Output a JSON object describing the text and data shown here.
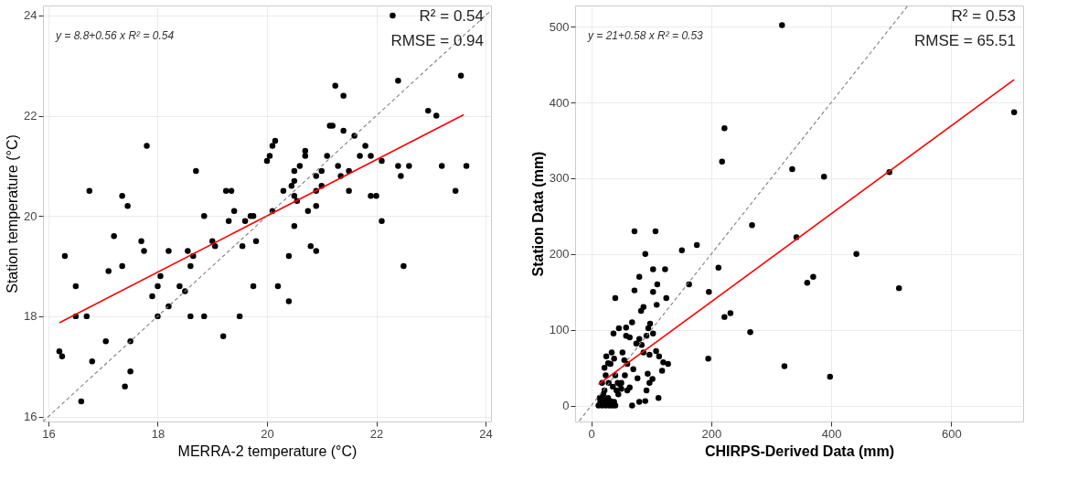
{
  "chart_data": [
    {
      "type": "scatter",
      "xlabel": "MERRA-2 temperature (°C)",
      "ylabel": "Station temperature (°C)",
      "xlim": [
        15.9,
        24.1
      ],
      "ylim": [
        15.9,
        24.2
      ],
      "xticks": [
        16,
        18,
        20,
        22,
        24
      ],
      "yticks": [
        16,
        18,
        20,
        22,
        24
      ],
      "grid": true,
      "annotations": [
        "y = 8.8+0.56 x   R² = 0.54",
        "R² = 0.54",
        "RMSE = 0.94"
      ],
      "series": [
        {
          "marker": "circle",
          "color": "#000000",
          "x": [
            16.2,
            16.25,
            16.3,
            16.5,
            16.5,
            16.6,
            16.7,
            16.75,
            16.8,
            17.05,
            17.1,
            17.2,
            17.35,
            17.35,
            17.4,
            17.45,
            17.5,
            17.5,
            17.7,
            17.75,
            17.8,
            17.9,
            18.0,
            18.0,
            18.05,
            18.2,
            18.2,
            18.4,
            18.5,
            18.55,
            18.6,
            18.6,
            18.65,
            18.7,
            18.85,
            18.85,
            19.0,
            19.05,
            19.2,
            19.25,
            19.35,
            19.3,
            19.4,
            19.5,
            19.55,
            19.6,
            19.7,
            19.75,
            19.75,
            19.8,
            20.0,
            20.05,
            20.1,
            20.15,
            20.1,
            20.2,
            20.4,
            20.4,
            20.45,
            20.5,
            20.5,
            20.5,
            20.5,
            20.6,
            20.7,
            20.7,
            20.75,
            20.8,
            20.9,
            20.9,
            20.9,
            21.0,
            21.0,
            21.1,
            21.15,
            21.2,
            21.25,
            21.3,
            21.4,
            21.4,
            21.5,
            21.6,
            21.7,
            21.8,
            21.9,
            21.9,
            22.0,
            22.1,
            22.1,
            22.3,
            22.4,
            22.4,
            22.45,
            22.5,
            22.6,
            22.95,
            23.1,
            23.2,
            23.45,
            23.55,
            23.65,
            20.9,
            21.35,
            21.5,
            20.3,
            20.55
          ],
          "values": [
            17.3,
            17.2,
            19.2,
            18.6,
            18.0,
            16.3,
            18.0,
            20.5,
            17.1,
            17.5,
            18.9,
            19.6,
            19.0,
            20.4,
            16.6,
            20.2,
            16.9,
            17.5,
            19.5,
            19.3,
            21.4,
            18.4,
            18.6,
            18.0,
            18.8,
            19.3,
            18.2,
            18.6,
            18.5,
            19.3,
            18.0,
            19.0,
            19.2,
            20.9,
            18.0,
            20.0,
            19.5,
            19.4,
            17.6,
            20.5,
            20.5,
            19.9,
            20.1,
            18.0,
            19.4,
            19.9,
            20.0,
            18.6,
            20.0,
            19.5,
            21.1,
            21.2,
            21.4,
            21.5,
            20.1,
            18.6,
            18.3,
            19.2,
            20.6,
            20.4,
            20.7,
            20.9,
            19.8,
            21.0,
            21.2,
            21.3,
            20.1,
            19.4,
            19.3,
            20.5,
            20.2,
            20.6,
            20.9,
            21.2,
            21.8,
            21.8,
            22.6,
            21.0,
            22.4,
            21.7,
            20.5,
            21.6,
            21.2,
            21.4,
            21.2,
            20.4,
            20.4,
            19.9,
            21.1,
            24.0,
            21.0,
            22.7,
            20.8,
            19.0,
            21.0,
            22.1,
            22.0,
            21.0,
            20.5,
            22.8,
            21.0,
            20.8,
            20.8,
            20.9,
            20.5,
            20.3
          ]
        },
        {
          "type": "line",
          "color": "#ff0000",
          "line_style": "solid",
          "x": [
            16.2,
            23.6
          ],
          "values": [
            17.87,
            22.02
          ]
        },
        {
          "type": "line",
          "color": "#808080",
          "line_style": "dashed",
          "x": [
            15.9,
            24.1
          ],
          "values": [
            15.9,
            24.1
          ]
        }
      ]
    },
    {
      "type": "scatter",
      "xlabel": "CHIRPS-Derived Data (mm)",
      "ylabel": "Station Data (mm)",
      "xlim": [
        -27,
        720
      ],
      "ylim": [
        -21,
        528
      ],
      "xticks": [
        0,
        200,
        400,
        600
      ],
      "yticks": [
        0,
        100,
        200,
        300,
        400,
        500
      ],
      "grid": true,
      "annotations": [
        "y = 21+0.58 x   R² = 0.53",
        "R² = 0.53",
        "RMSE = 65.51"
      ],
      "series": [
        {
          "marker": "circle",
          "color": "#000000",
          "x": [
            318,
            222,
            218,
            335,
            388,
            497,
            705,
            342,
            370,
            360,
            442,
            513,
            268,
            212,
            222,
            232,
            265,
            195,
            322,
            398,
            151,
            176,
            163,
            196,
            72,
            107,
            90,
            103,
            123,
            80,
            72,
            110,
            103,
            125,
            109,
            87,
            83,
            68,
            40,
            46,
            37,
            58,
            58,
            95,
            92,
            64,
            80,
            75,
            84,
            87,
            97,
            108,
            120,
            113,
            118,
            128,
            52,
            55,
            34,
            38,
            25,
            28,
            22,
            24,
            29,
            22,
            32,
            40,
            44,
            56,
            50,
            60,
            50,
            36,
            42,
            45,
            48,
            77,
            64,
            94,
            97,
            112,
            68,
            80,
            90,
            18,
            20,
            15,
            18,
            20,
            25,
            28,
            30,
            32,
            35,
            38,
            24,
            12,
            14,
            40,
            92,
            102,
            70,
            60,
            98,
            103
          ],
          "values": [
            502,
            366,
            322,
            312,
            302,
            308,
            387,
            222,
            170,
            162,
            200,
            155,
            238,
            182,
            117,
            122,
            97,
            62,
            52,
            38,
            205,
            212,
            160,
            150,
            230,
            230,
            200,
            180,
            180,
            170,
            152,
            160,
            150,
            142,
            133,
            130,
            125,
            110,
            142,
            102,
            95,
            103,
            92,
            102,
            92,
            90,
            88,
            82,
            80,
            70,
            67,
            72,
            57,
            65,
            46,
            55,
            70,
            60,
            70,
            62,
            65,
            56,
            50,
            40,
            30,
            20,
            55,
            40,
            30,
            40,
            30,
            20,
            22,
            25,
            20,
            15,
            28,
            36,
            24,
            42,
            30,
            10,
            0,
            5,
            6,
            30,
            15,
            5,
            0,
            8,
            3,
            10,
            0,
            6,
            0,
            5,
            0,
            0,
            10,
            0,
            20,
            35,
            48,
            55,
            108,
            95
          ]
        },
        {
          "type": "line",
          "color": "#ff0000",
          "line_style": "solid",
          "x": [
            12,
            705
          ],
          "values": [
            28,
            430
          ]
        },
        {
          "type": "line",
          "color": "#808080",
          "line_style": "dashed",
          "x": [
            -20,
            528
          ],
          "values": [
            -20,
            528
          ]
        }
      ]
    }
  ]
}
